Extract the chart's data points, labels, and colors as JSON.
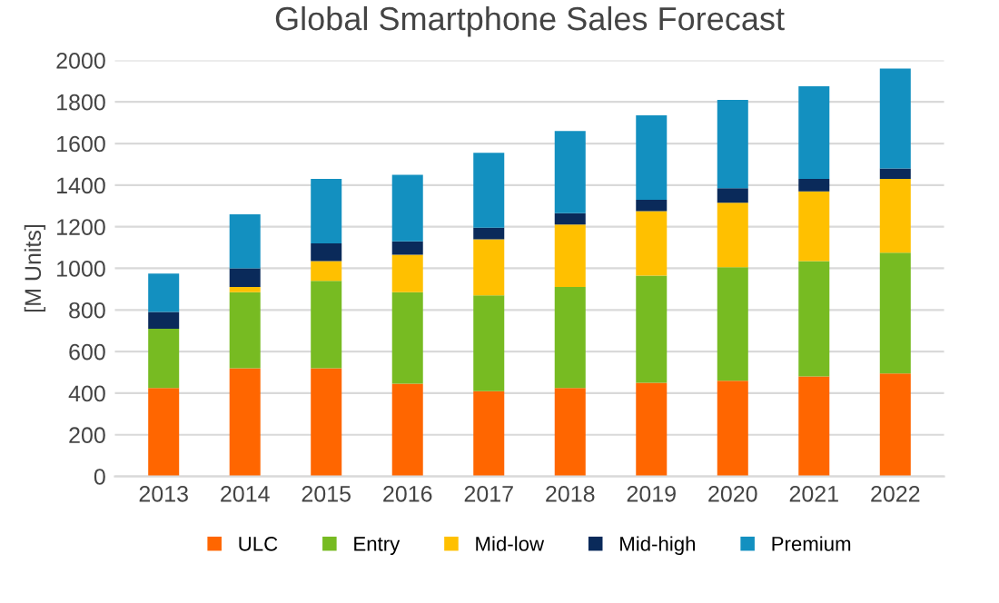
{
  "chart_data": {
    "type": "bar",
    "title": "Global Smartphone Sales Forecast",
    "ylabel": "[M Units]",
    "categories": [
      "2013",
      "2014",
      "2015",
      "2016",
      "2017",
      "2018",
      "2019",
      "2020",
      "2021",
      "2022"
    ],
    "stacked": true,
    "series": [
      {
        "name": "ULC",
        "color": "#ff6600",
        "values": [
          425,
          520,
          520,
          445,
          410,
          425,
          450,
          460,
          480,
          495
        ]
      },
      {
        "name": "Entry",
        "color": "#77bb22",
        "values": [
          285,
          365,
          420,
          440,
          460,
          485,
          515,
          545,
          555,
          580
        ]
      },
      {
        "name": "Mid-low",
        "color": "#ffc000",
        "values": [
          0,
          25,
          95,
          180,
          270,
          300,
          310,
          310,
          335,
          355
        ]
      },
      {
        "name": "Mid-high",
        "color": "#0a2a5a",
        "values": [
          80,
          90,
          85,
          65,
          55,
          55,
          55,
          70,
          60,
          50
        ]
      },
      {
        "name": "Premium",
        "color": "#1390c0",
        "values": [
          185,
          260,
          310,
          320,
          360,
          395,
          405,
          425,
          445,
          480
        ]
      }
    ],
    "ylim": [
      0,
      2000
    ],
    "yticks": [
      0,
      200,
      400,
      600,
      800,
      1000,
      1200,
      1400,
      1600,
      1800,
      2000
    ],
    "grid": "y",
    "legend": "bottom"
  }
}
